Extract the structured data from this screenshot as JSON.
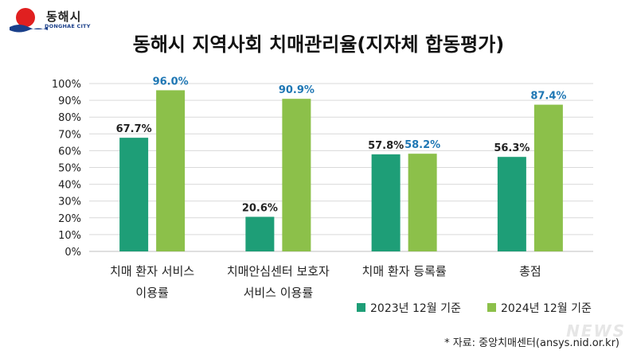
{
  "header": {
    "logo_ko": "동해시",
    "logo_en": "DONGHAE CITY"
  },
  "source_note": "* 자료: 중앙치매센터(ansys.nid.or.kr)",
  "watermark": "NEWS",
  "colors": {
    "series_2023": "#1e9e77",
    "series_2024": "#8cc04a",
    "label_2024": "#1f77b4",
    "grid": "#d9d9d9"
  },
  "chart_data": {
    "type": "bar",
    "title": "동해시 지역사회 치매관리율(지자체 합동평가)",
    "categories": [
      [
        "치매 환자 서비스",
        "이용률"
      ],
      [
        "치매안심센터 보호자",
        "서비스 이용률"
      ],
      [
        "치매 환자 등록률"
      ],
      [
        "총점"
      ]
    ],
    "series": [
      {
        "name": "2023년 12월 기준",
        "values": [
          67.7,
          20.6,
          57.8,
          56.3
        ],
        "labels": [
          "67.7%",
          "20.6%",
          "57.8%",
          "56.3%"
        ]
      },
      {
        "name": "2024년 12월 기준",
        "values": [
          96.0,
          90.9,
          58.2,
          87.4
        ],
        "labels": [
          "96.0%",
          "90.9%",
          "58.2%",
          "87.4%"
        ]
      }
    ],
    "yticks": [
      "0%",
      "10%",
      "20%",
      "30%",
      "40%",
      "50%",
      "60%",
      "70%",
      "80%",
      "90%",
      "100%"
    ],
    "ylim": [
      0,
      100
    ],
    "grid": true,
    "legend_position": "bottom-right"
  }
}
